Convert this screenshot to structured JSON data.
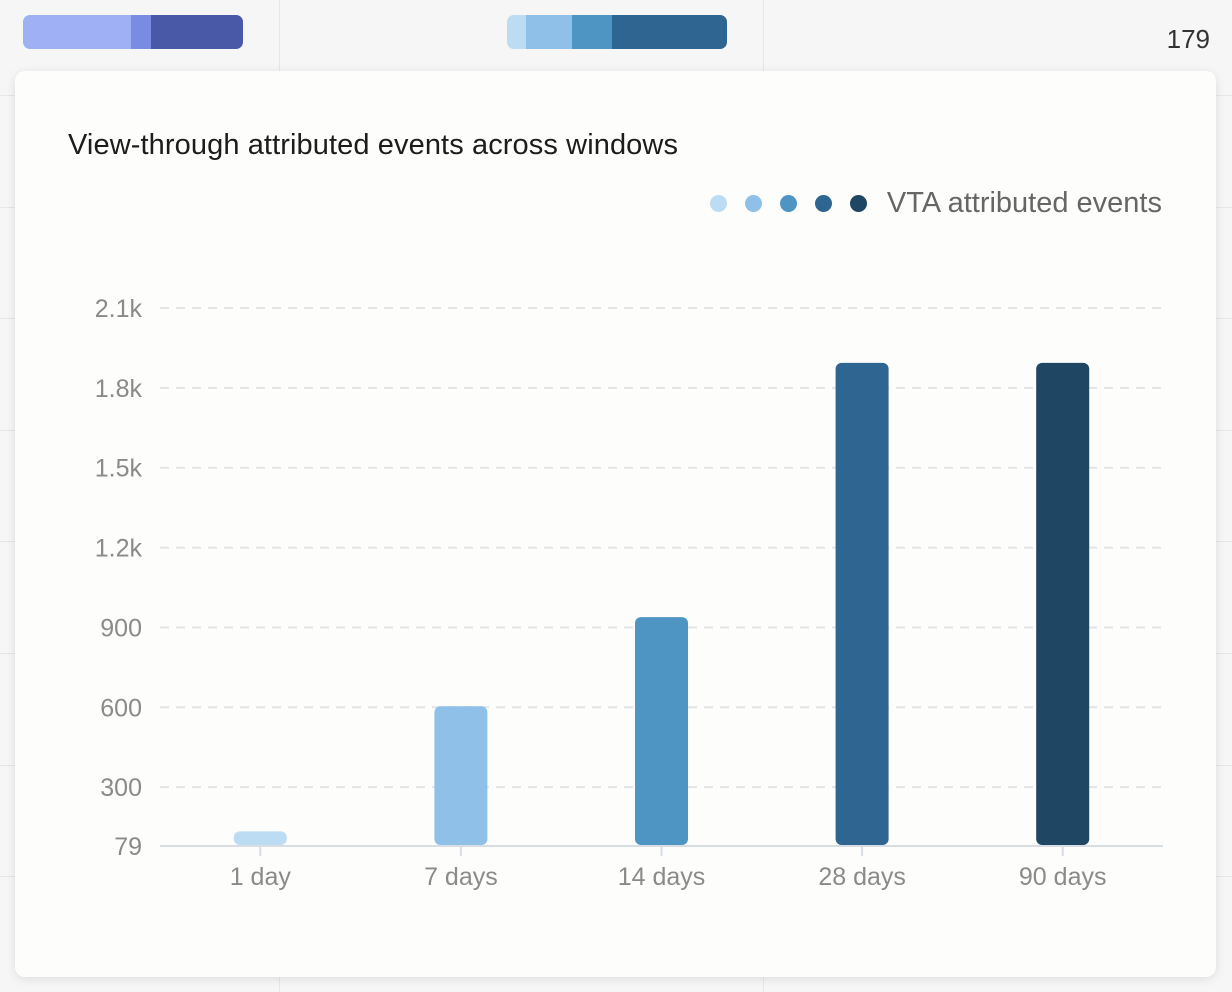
{
  "background": {
    "left_bar_colors": [
      "#9fb0f5",
      "#7a8be3",
      "#4a58a8"
    ],
    "center_bar_colors": [
      "#bcdcf4",
      "#8ec0e8",
      "#4f95c4",
      "#2e6591"
    ],
    "row_count": "179"
  },
  "popover": {
    "title": "View-through attributed events across windows",
    "legend_label": "VTA attributed events",
    "legend_colors": [
      "#bcdcf4",
      "#8ec0e8",
      "#4f95c4",
      "#2e6591",
      "#1f4663"
    ]
  },
  "chart_data": {
    "type": "bar",
    "title": "View-through attributed events across windows",
    "xlabel": "",
    "ylabel": "",
    "categories": [
      "1 day",
      "7 days",
      "14 days",
      "28 days",
      "90 days"
    ],
    "series": [
      {
        "name": "VTA attributed events",
        "values": [
          130,
          600,
          935,
          1890,
          1890
        ]
      }
    ],
    "colors": [
      "#bcdcf4",
      "#8ec0e8",
      "#4f95c4",
      "#2e6591",
      "#1f4663"
    ],
    "yticks": [
      79,
      300,
      600,
      900,
      1200,
      1500,
      1800,
      2100
    ],
    "ytick_labels": [
      "79",
      "300",
      "600",
      "900",
      "1.2k",
      "1.5k",
      "1.8k",
      "2.1k"
    ],
    "ylim": [
      79,
      2100
    ],
    "grid": true,
    "legend": "top-right"
  }
}
